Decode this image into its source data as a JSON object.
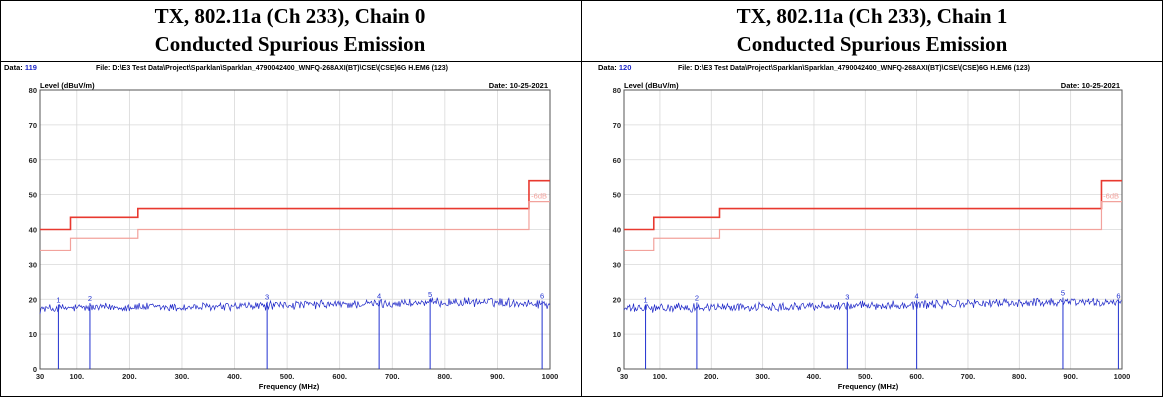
{
  "panels": [
    {
      "title_line1": "TX, 802.11a (Ch 233), Chain 0",
      "title_line2": "Conducted Spurious Emission",
      "data_label": "Data:",
      "data_num": "119",
      "file": "File: D:\\E3 Test Data\\Project\\Sparklan\\Sparklan_4790042400_WNFQ-268AXI(BT)\\CSE\\(CSE)6G H.EM6  (123)",
      "date": "Date: 10-25-2021"
    },
    {
      "title_line1": "TX, 802.11a (Ch 233), Chain 1",
      "title_line2": "Conducted Spurious Emission",
      "data_label": "Data:",
      "data_num": "120",
      "file": "File: D:\\E3 Test Data\\Project\\Sparklan\\Sparklan_4790042400_WNFQ-268AXI(BT)\\CSE\\(CSE)6G H.EM6  (123)",
      "date": "Date: 10-25-2021"
    }
  ],
  "colors": {
    "limit": "#e8392f",
    "limit_margin": "#f2a29c",
    "trace": "#1f28c8",
    "marker": "#2030d0",
    "grid": "#d8d8d8"
  },
  "chart_data": [
    {
      "type": "line",
      "xlabel": "Frequency (MHz)",
      "ylabel": "Level (dBuV/m)",
      "xlim": [
        30,
        1000
      ],
      "ylim": [
        0,
        80
      ],
      "x_ticks": [
        "30",
        "100.",
        "200.",
        "300.",
        "400.",
        "500.",
        "600.",
        "700.",
        "800.",
        "900.",
        "1000"
      ],
      "x_tick_values": [
        30,
        100,
        200,
        300,
        400,
        500,
        600,
        700,
        800,
        900,
        1000
      ],
      "y_ticks": [
        "0",
        "10",
        "20",
        "30",
        "40",
        "50",
        "60",
        "70",
        "80"
      ],
      "series": [
        {
          "role": "limit",
          "x": [
            30,
            88,
            88,
            216,
            216,
            960,
            960,
            1000
          ],
          "y": [
            40,
            40,
            43.5,
            43.5,
            46,
            46,
            54,
            54
          ]
        },
        {
          "role": "limit_margin",
          "name": "-6dB",
          "x": [
            30,
            88,
            88,
            216,
            216,
            960,
            960,
            1000
          ],
          "y": [
            34,
            34,
            37.5,
            37.5,
            40,
            40,
            48,
            48
          ]
        },
        {
          "role": "trace",
          "x": [
            30,
            100,
            200,
            300,
            400,
            500,
            600,
            700,
            800,
            900,
            1000
          ],
          "y": [
            17.2,
            17.5,
            17.8,
            17.6,
            17.9,
            18.3,
            18.5,
            18.8,
            19.1,
            19.2,
            18.6
          ]
        }
      ],
      "markers": [
        {
          "label": "1",
          "x": 65,
          "y": 18.2
        },
        {
          "label": "2",
          "x": 125,
          "y": 18.6
        },
        {
          "label": "3",
          "x": 462,
          "y": 19.0
        },
        {
          "label": "4",
          "x": 675,
          "y": 19.4
        },
        {
          "label": "5",
          "x": 772,
          "y": 19.8
        },
        {
          "label": "6",
          "x": 985,
          "y": 19.3
        }
      ]
    },
    {
      "type": "line",
      "xlabel": "Frequency (MHz)",
      "ylabel": "Level (dBuV/m)",
      "xlim": [
        30,
        1000
      ],
      "ylim": [
        0,
        80
      ],
      "x_ticks": [
        "30",
        "100.",
        "200.",
        "300.",
        "400.",
        "500.",
        "600.",
        "700.",
        "800.",
        "900.",
        "1000"
      ],
      "x_tick_values": [
        30,
        100,
        200,
        300,
        400,
        500,
        600,
        700,
        800,
        900,
        1000
      ],
      "y_ticks": [
        "0",
        "10",
        "20",
        "30",
        "40",
        "50",
        "60",
        "70",
        "80"
      ],
      "series": [
        {
          "role": "limit",
          "x": [
            30,
            88,
            88,
            216,
            216,
            960,
            960,
            1000
          ],
          "y": [
            40,
            40,
            43.5,
            43.5,
            46,
            46,
            54,
            54
          ]
        },
        {
          "role": "limit_margin",
          "name": "-6dB",
          "x": [
            30,
            88,
            88,
            216,
            216,
            960,
            960,
            1000
          ],
          "y": [
            34,
            34,
            37.5,
            37.5,
            40,
            40,
            48,
            48
          ]
        },
        {
          "role": "trace",
          "x": [
            30,
            100,
            200,
            300,
            400,
            500,
            600,
            700,
            800,
            900,
            1000
          ],
          "y": [
            17.3,
            17.4,
            17.7,
            17.8,
            18.1,
            18.2,
            18.4,
            18.7,
            19.0,
            19.4,
            18.9
          ]
        }
      ],
      "markers": [
        {
          "label": "1",
          "x": 72,
          "y": 18.2
        },
        {
          "label": "2",
          "x": 172,
          "y": 18.8
        },
        {
          "label": "3",
          "x": 465,
          "y": 19.0
        },
        {
          "label": "4",
          "x": 600,
          "y": 19.4
        },
        {
          "label": "5",
          "x": 885,
          "y": 20.2
        },
        {
          "label": "6",
          "x": 993,
          "y": 19.4
        }
      ]
    }
  ]
}
